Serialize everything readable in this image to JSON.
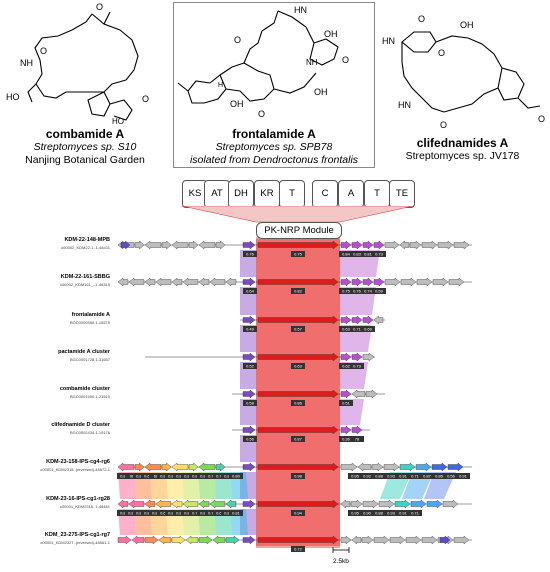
{
  "compounds": [
    {
      "name": "combamide A",
      "organism": "Streptomyces sp. S10",
      "source": "Nanjing Botanical Garden"
    },
    {
      "name": "frontalamide A",
      "organism": "Streptomyces sp. SPB78",
      "source": "isolated from Dendroctonus frontalis"
    },
    {
      "name": "clifednamides A",
      "organism": "Streptomyces sp. JV178"
    }
  ],
  "atom_labels": {
    "O": "O",
    "NH": "NH",
    "HN": "HN",
    "HO": "HO",
    "OH": "OH",
    "H": "H",
    "N": "N"
  },
  "domains": [
    "KS",
    "AT",
    "DH",
    "KR",
    "T",
    "C",
    "A",
    "T",
    "TE"
  ],
  "module_label": "PK-NRP Module",
  "rows": [
    {
      "name": "KDM-22-148-MPB",
      "acc": "c00002_KDM22-1..1-48411",
      "left_ids": [
        "0.76"
      ],
      "right_ids": [
        "0.84",
        "0.83",
        "0.81",
        "0.73"
      ],
      "center": "0.75"
    },
    {
      "name": "KDM-22-161-SBBG",
      "acc": "c00002_KDM161_..1-48315",
      "left_ids": [
        "0.64"
      ],
      "right_ids": [
        "0.75",
        "0.76",
        "0.74",
        "0.59"
      ],
      "center": "0.82"
    },
    {
      "name": "frontalamide A",
      "acc": "BGC0000998.1-16575",
      "left_ids": [
        "0.49"
      ],
      "right_ids": [
        "0.63",
        "0.71",
        "0.69"
      ],
      "center": "0.57"
    },
    {
      "name": "pactamide A cluster",
      "acc": "BGC0001728.1-31657",
      "left_ids": [
        "0.52"
      ],
      "right_ids": [
        "0.62",
        "0.73"
      ],
      "center": "0.63"
    },
    {
      "name": "combamide cluster",
      "acc": "BGC0001550.1-21510",
      "left_ids": [
        "0.58"
      ],
      "right_ids": [
        "0.51"
      ],
      "center": "0.86"
    },
    {
      "name": "clifednamide D cluster",
      "acc": "BGC0002434.1-19176",
      "left_ids": [
        "0.56"
      ],
      "right_ids": [
        "0.36",
        "78"
      ],
      "center": "0.87"
    },
    {
      "name": "KDM-23-158-IPS-cg4-rg6",
      "acc": "c00001_KDM2315..(reversed)-48572-1",
      "left_ids": [
        "0.89",
        "96",
        "0.89",
        "0.67",
        "68",
        "0.85",
        "0.88",
        "0.86",
        "0.85",
        "0.82",
        "0.89",
        "0.71",
        "0.78",
        "0.85",
        "0.80"
      ],
      "right_ids": [
        "0.95",
        "0.92",
        "0.88",
        "0.93",
        "0.91",
        "0.71",
        "0.87",
        "0.86",
        "0.56",
        "0.91"
      ],
      "center": "0.98"
    },
    {
      "name": "KDM-23-16-IPS-cg1-rg28",
      "acc": "c00001_KDM2316..1-48481",
      "left_ids": [
        "0.89",
        "0.88",
        "0.89",
        "0.83",
        "0.84",
        "0.69",
        "0.85",
        "0.86",
        "0.83",
        "0.79",
        "0.85",
        "0.74",
        "0.64",
        "0.82",
        "0.81"
      ],
      "right_ids": [
        "0.95",
        "0.90",
        "0.88",
        "0.93",
        "0.91",
        "0.71"
      ],
      "center": "0.94"
    },
    {
      "name": "KDM_23-275-IPS-cg1-rg7",
      "acc": "c00001_KDM2327..(reversed)-48561-1",
      "left_ids": [],
      "right_ids": [],
      "center": "0.72"
    }
  ],
  "scale_label": "2.5kb"
}
